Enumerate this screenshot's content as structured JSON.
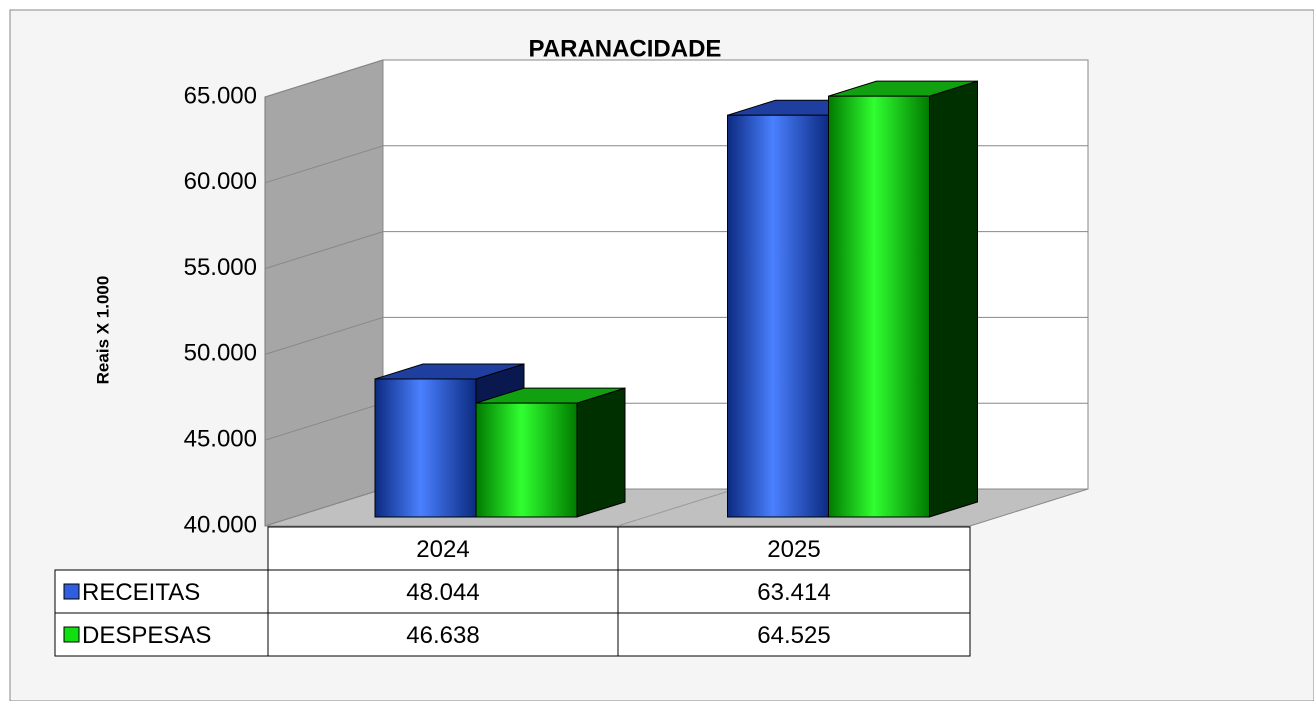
{
  "chart_data": {
    "type": "bar3d",
    "title": "PARANACIDADE",
    "y_label": "Reais X 1.000",
    "categories": [
      "2024",
      "2025"
    ],
    "series": [
      {
        "name": "RECEITAS",
        "color": "#2f5fe0",
        "values": [
          48044,
          63414
        ],
        "value_labels": [
          "48.044",
          "63.414"
        ]
      },
      {
        "name": "DESPESAS",
        "color": "#10e010",
        "values": [
          46638,
          64525
        ],
        "value_labels": [
          "46.638",
          "64.525"
        ]
      }
    ],
    "ylim": [
      40000,
      65000
    ],
    "yticks": [
      {
        "value": 40000,
        "label": "40.000"
      },
      {
        "value": 45000,
        "label": "45.000"
      },
      {
        "value": 50000,
        "label": "50.000"
      },
      {
        "value": 55000,
        "label": "55.000"
      },
      {
        "value": 60000,
        "label": "60.000"
      },
      {
        "value": 65000,
        "label": "65.000"
      }
    ],
    "grid": true
  }
}
